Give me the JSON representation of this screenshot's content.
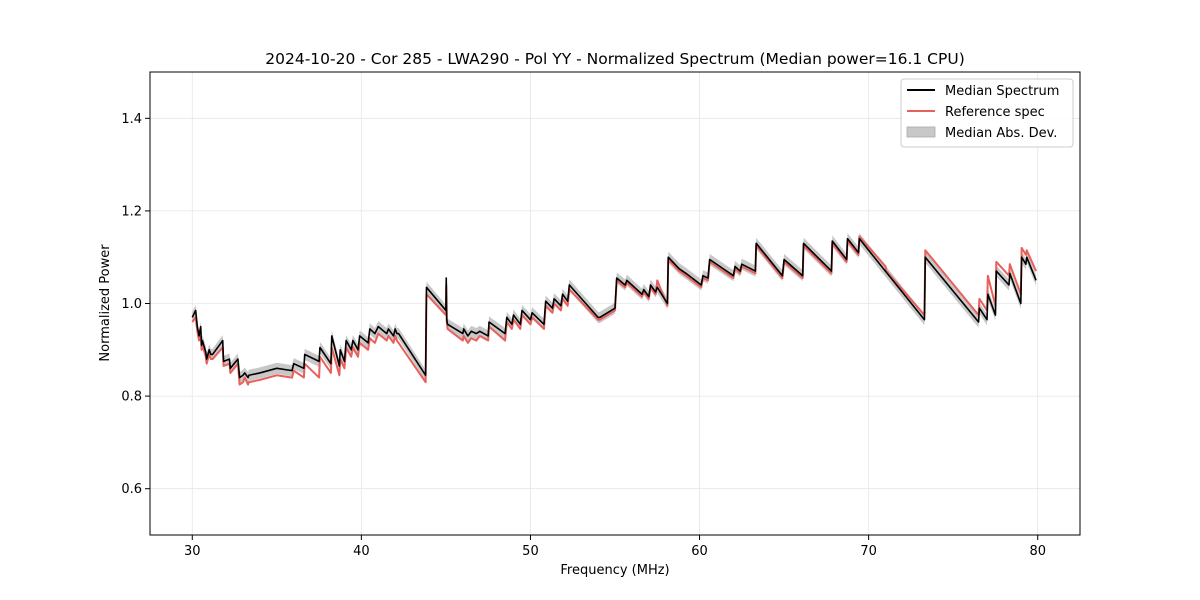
{
  "chart_data": {
    "type": "line",
    "title": "2024-10-20 - Cor 285 - LWA290 - Pol YY - Normalized Spectrum (Median power=16.1 CPU)",
    "xlabel": "Frequency (MHz)",
    "ylabel": "Normalized Power",
    "xlim": [
      27.5,
      82.5
    ],
    "ylim": [
      0.5,
      1.5
    ],
    "xticks": [
      30,
      40,
      50,
      60,
      70,
      80
    ],
    "yticks": [
      0.6,
      0.8,
      1.0,
      1.2,
      1.4
    ],
    "xtick_labels": [
      "30",
      "40",
      "50",
      "60",
      "70",
      "80"
    ],
    "ytick_labels": [
      "0.6",
      "0.8",
      "1.0",
      "1.2",
      "1.4"
    ],
    "grid": true,
    "legend_position": "top-right",
    "legend": [
      {
        "label": "Median Spectrum",
        "kind": "line",
        "color": "#000000"
      },
      {
        "label": "Reference spec",
        "kind": "line",
        "color": "#e8605c"
      },
      {
        "label": "Median Abs. Dev.",
        "kind": "patch",
        "color": "#c8c8c8"
      }
    ],
    "mad_halfwidth": 0.012,
    "series": [
      {
        "name": "Median Spectrum",
        "color": "#000000",
        "x": [
          30.0,
          30.2,
          30.3,
          30.4,
          30.5,
          30.55,
          30.6,
          30.8,
          30.85,
          31.0,
          31.1,
          31.2,
          31.8,
          31.85,
          32.2,
          32.25,
          32.7,
          32.8,
          33.0,
          33.1,
          33.3,
          33.35,
          34.0,
          35.0,
          35.9,
          36.0,
          36.6,
          36.65,
          37.5,
          37.55,
          38.2,
          38.25,
          38.7,
          38.75,
          39.0,
          39.1,
          39.4,
          39.5,
          39.8,
          39.9,
          40.4,
          40.5,
          40.8,
          41.0,
          41.5,
          41.6,
          41.9,
          42.0,
          42.1,
          42.2,
          43.8,
          43.85,
          45.0,
          45.02,
          45.05,
          45.1,
          46.0,
          46.05,
          46.3,
          46.5,
          46.8,
          47.0,
          47.5,
          47.55,
          48.5,
          48.6,
          48.9,
          49.0,
          49.4,
          49.5,
          50.0,
          50.1,
          50.8,
          50.9,
          51.3,
          51.4,
          51.8,
          51.9,
          52.2,
          52.3,
          54.0,
          54.1,
          55.0,
          55.1,
          55.6,
          55.7,
          56.6,
          56.7,
          57.0,
          57.1,
          57.4,
          57.5,
          58.1,
          58.15,
          58.8,
          59.2,
          60.1,
          60.2,
          60.5,
          60.6,
          62.0,
          62.1,
          62.4,
          62.5,
          63.3,
          63.35,
          64.9,
          65.0,
          66.1,
          66.15,
          67.8,
          67.85,
          68.7,
          68.75,
          69.4,
          69.45,
          73.3,
          73.35,
          76.5,
          76.55,
          77.0,
          77.05,
          77.5,
          77.55,
          78.3,
          78.35,
          79.0,
          79.05,
          79.3,
          79.35,
          79.9
        ],
        "y": [
          0.97,
          0.985,
          0.95,
          0.93,
          0.95,
          0.91,
          0.92,
          0.895,
          0.88,
          0.9,
          0.89,
          0.89,
          0.92,
          0.875,
          0.88,
          0.86,
          0.88,
          0.84,
          0.845,
          0.85,
          0.84,
          0.845,
          0.85,
          0.86,
          0.855,
          0.87,
          0.86,
          0.89,
          0.875,
          0.905,
          0.87,
          0.93,
          0.865,
          0.9,
          0.875,
          0.92,
          0.9,
          0.92,
          0.9,
          0.93,
          0.915,
          0.945,
          0.935,
          0.95,
          0.935,
          0.945,
          0.93,
          0.945,
          0.935,
          0.935,
          0.845,
          1.035,
          0.985,
          1.055,
          0.965,
          0.955,
          0.935,
          0.945,
          0.93,
          0.94,
          0.935,
          0.94,
          0.93,
          0.96,
          0.935,
          0.97,
          0.955,
          0.975,
          0.955,
          0.985,
          0.965,
          0.98,
          0.955,
          1.005,
          0.99,
          1.01,
          0.995,
          1.02,
          1.005,
          1.04,
          0.97,
          0.97,
          0.99,
          1.055,
          1.04,
          1.05,
          1.02,
          1.03,
          1.015,
          1.04,
          1.025,
          1.035,
          1.0,
          1.1,
          1.075,
          1.065,
          1.04,
          1.06,
          1.055,
          1.095,
          1.06,
          1.08,
          1.07,
          1.085,
          1.07,
          1.13,
          1.06,
          1.095,
          1.06,
          1.13,
          1.07,
          1.135,
          1.095,
          1.14,
          1.11,
          1.14,
          0.965,
          1.1,
          0.96,
          0.99,
          0.965,
          1.02,
          0.975,
          1.07,
          1.04,
          1.065,
          1.0,
          1.1,
          1.085,
          1.1,
          1.05
        ]
      },
      {
        "name": "Reference spec",
        "color": "#e8605c",
        "x": [
          30.0,
          30.2,
          30.3,
          30.4,
          30.5,
          30.55,
          30.6,
          30.8,
          30.85,
          31.0,
          31.1,
          31.2,
          31.8,
          31.85,
          32.2,
          32.25,
          32.7,
          32.8,
          33.0,
          33.1,
          33.3,
          33.35,
          34.0,
          35.0,
          35.9,
          36.0,
          36.6,
          36.65,
          37.5,
          37.55,
          38.2,
          38.25,
          38.7,
          38.75,
          39.0,
          39.1,
          39.4,
          39.5,
          39.8,
          39.9,
          40.4,
          40.5,
          40.8,
          41.0,
          41.5,
          41.6,
          41.9,
          42.0,
          42.1,
          42.2,
          43.8,
          43.85,
          45.0,
          45.02,
          45.05,
          45.1,
          46.0,
          46.05,
          46.3,
          46.5,
          46.8,
          47.0,
          47.5,
          47.55,
          48.5,
          48.6,
          48.9,
          49.0,
          49.4,
          49.5,
          50.0,
          50.1,
          50.8,
          50.9,
          51.3,
          51.4,
          51.8,
          51.9,
          52.2,
          52.3,
          54.0,
          54.1,
          55.0,
          55.1,
          55.6,
          55.7,
          56.6,
          56.7,
          57.0,
          57.1,
          57.4,
          57.5,
          58.1,
          58.15,
          58.8,
          59.2,
          60.1,
          60.2,
          60.5,
          60.6,
          62.0,
          62.1,
          62.4,
          62.5,
          63.3,
          63.35,
          64.9,
          65.0,
          66.1,
          66.15,
          67.8,
          67.85,
          68.7,
          68.75,
          69.4,
          69.45,
          71.0,
          71.05,
          73.3,
          73.35,
          76.5,
          76.55,
          77.0,
          77.05,
          77.5,
          77.55,
          78.3,
          78.35,
          79.0,
          79.05,
          79.3,
          79.35,
          79.9
        ],
        "y": [
          0.96,
          0.97,
          0.94,
          0.92,
          0.93,
          0.9,
          0.91,
          0.885,
          0.87,
          0.89,
          0.88,
          0.88,
          0.905,
          0.865,
          0.87,
          0.85,
          0.87,
          0.825,
          0.83,
          0.84,
          0.825,
          0.83,
          0.835,
          0.845,
          0.84,
          0.855,
          0.84,
          0.87,
          0.84,
          0.885,
          0.85,
          0.905,
          0.845,
          0.88,
          0.86,
          0.905,
          0.885,
          0.905,
          0.885,
          0.915,
          0.9,
          0.925,
          0.915,
          0.935,
          0.92,
          0.93,
          0.915,
          0.93,
          0.92,
          0.915,
          0.83,
          1.02,
          0.975,
          1.04,
          0.96,
          0.945,
          0.92,
          0.93,
          0.915,
          0.925,
          0.92,
          0.93,
          0.92,
          0.95,
          0.92,
          0.96,
          0.945,
          0.965,
          0.945,
          0.975,
          0.955,
          0.97,
          0.945,
          0.995,
          0.98,
          1.0,
          0.985,
          1.01,
          0.995,
          1.03,
          0.965,
          0.965,
          0.985,
          1.05,
          1.035,
          1.045,
          1.015,
          1.025,
          1.01,
          1.035,
          1.02,
          1.05,
          0.995,
          1.095,
          1.07,
          1.06,
          1.035,
          1.055,
          1.05,
          1.09,
          1.055,
          1.075,
          1.065,
          1.08,
          1.065,
          1.125,
          1.055,
          1.09,
          1.055,
          1.125,
          1.065,
          1.13,
          1.09,
          1.135,
          1.105,
          1.145,
          1.08,
          1.07,
          0.975,
          1.115,
          0.975,
          1.01,
          0.985,
          1.06,
          0.995,
          1.09,
          1.06,
          1.085,
          1.02,
          1.12,
          1.105,
          1.115,
          1.07
        ]
      }
    ]
  }
}
